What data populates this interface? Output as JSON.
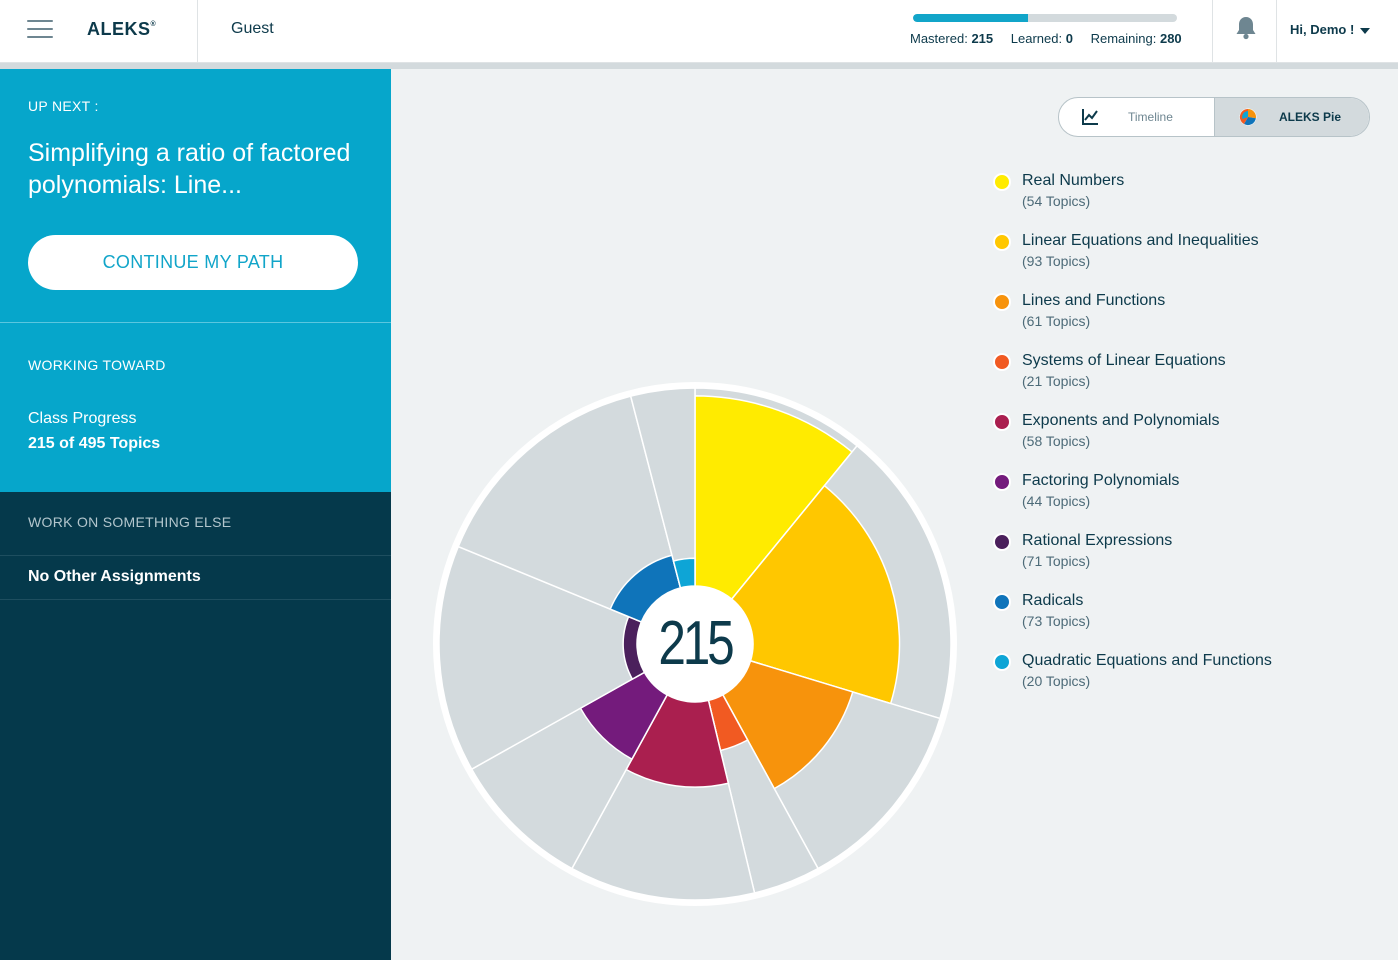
{
  "header": {
    "logo_text": "ALEKS",
    "logo_mark": "®",
    "user_context": "Guest",
    "progress": {
      "mastered_label": "Mastered:",
      "mastered": 215,
      "learned_label": "Learned:",
      "learned": 0,
      "remaining_label": "Remaining:",
      "remaining": 280,
      "total": 495
    },
    "greeting": "Hi, Demo !"
  },
  "sidebar": {
    "up_next_label": "UP NEXT :",
    "up_next_title": "Simplifying a ratio of factored polynomials: Line...",
    "continue_button": "CONTINUE MY PATH",
    "working_toward_label": "WORKING TOWARD",
    "class_progress_label": "Class Progress",
    "class_progress_value": "215 of 495 Topics",
    "work_else_label": "WORK ON SOMETHING ELSE",
    "no_other_assignments": "No Other Assignments"
  },
  "view_toggle": {
    "timeline_label": "Timeline",
    "pie_label": "ALEKS Pie",
    "active": "pie"
  },
  "pie": {
    "center_value": "215",
    "slices": [
      {
        "name": "Real Numbers",
        "count_label": "(54 Topics)",
        "topics": 54,
        "mastered_fraction": 0.96,
        "color": "#ffeb00"
      },
      {
        "name": "Linear Equations and Inequalities",
        "count_label": "(93 Topics)",
        "topics": 93,
        "mastered_fraction": 0.74,
        "color": "#ffc700"
      },
      {
        "name": "Lines and Functions",
        "count_label": "(61 Topics)",
        "topics": 61,
        "mastered_fraction": 0.54,
        "color": "#f7930c"
      },
      {
        "name": "Systems of Linear Equations",
        "count_label": "(21 Topics)",
        "topics": 21,
        "mastered_fraction": 0.26,
        "color": "#f15a22"
      },
      {
        "name": "Exponents and Polynomials",
        "count_label": "(58 Topics)",
        "topics": 58,
        "mastered_fraction": 0.43,
        "color": "#aa1f4f"
      },
      {
        "name": "Factoring Polynomials",
        "count_label": "(44 Topics)",
        "topics": 44,
        "mastered_fraction": 0.37,
        "color": "#741b7c"
      },
      {
        "name": "Rational Expressions",
        "count_label": "(71 Topics)",
        "topics": 71,
        "mastered_fraction": 0.07,
        "color": "#4b205c"
      },
      {
        "name": "Radicals",
        "count_label": "(73 Topics)",
        "topics": 73,
        "mastered_fraction": 0.17,
        "color": "#0f74ba"
      },
      {
        "name": "Quadratic Equations and Functions",
        "count_label": "(20 Topics)",
        "topics": 20,
        "mastered_fraction": 0.14,
        "color": "#0ea5d6"
      }
    ],
    "remaining_color": "#d3dadd"
  }
}
